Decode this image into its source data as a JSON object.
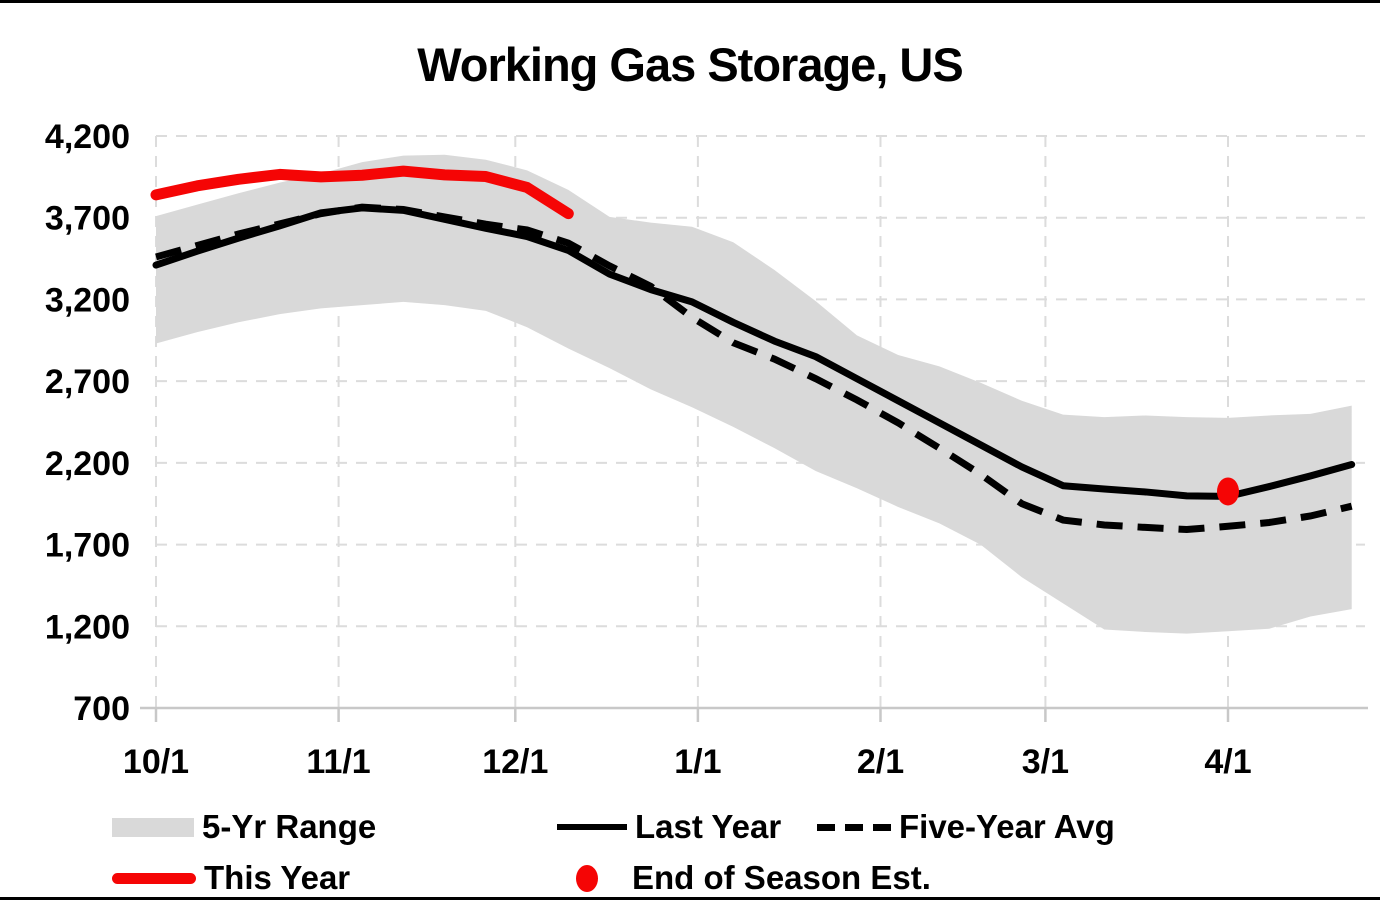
{
  "title": "Working Gas Storage, US",
  "legend": {
    "range_label": "5-Yr Range",
    "last_year_label": "Last Year",
    "five_year_avg_label": "Five-Year Avg",
    "this_year_label": "This Year",
    "end_of_season_label": "End of Season Est."
  },
  "colors": {
    "accent_red": "#F50505",
    "series_black": "#000000",
    "range_fill": "#D9D9D9",
    "gridline": "#DCDCDC",
    "axis_line": "#C8C8C8",
    "background": "#FFFFFF",
    "border": "#000000"
  },
  "chart_data": {
    "type": "line",
    "title": "Working Gas Storage, US",
    "xlabel": "",
    "ylabel": "",
    "ylim": [
      700,
      4200
    ],
    "grid": true,
    "legend_position": "bottom",
    "yticks": [
      {
        "value": 700,
        "label": "700"
      },
      {
        "value": 1200,
        "label": "1,200"
      },
      {
        "value": 1700,
        "label": "1,700"
      },
      {
        "value": 2200,
        "label": "2,200"
      },
      {
        "value": 2700,
        "label": "2,700"
      },
      {
        "value": 3200,
        "label": "3,200"
      },
      {
        "value": 3700,
        "label": "3,700"
      },
      {
        "value": 4200,
        "label": "4,200"
      }
    ],
    "xticks": [
      {
        "day": 0,
        "label": "10/1"
      },
      {
        "day": 31,
        "label": "11/1"
      },
      {
        "day": 61,
        "label": "12/1"
      },
      {
        "day": 92,
        "label": "1/1"
      },
      {
        "day": 123,
        "label": "2/1"
      },
      {
        "day": 151,
        "label": "3/1"
      },
      {
        "day": 182,
        "label": "4/1"
      }
    ],
    "dates": [
      "10/1",
      "10/8",
      "10/15",
      "10/22",
      "10/29",
      "11/5",
      "11/12",
      "11/19",
      "11/26",
      "12/3",
      "12/10",
      "12/17",
      "12/24",
      "12/31",
      "1/7",
      "1/14",
      "1/21",
      "1/28",
      "2/4",
      "2/11",
      "2/18",
      "2/25",
      "3/4",
      "3/11",
      "3/18",
      "3/25",
      "4/1",
      "4/8",
      "4/15",
      "4/22"
    ],
    "x_days": [
      0,
      7,
      14,
      21,
      28,
      35,
      42,
      49,
      56,
      63,
      70,
      77,
      84,
      91,
      98,
      105,
      112,
      119,
      126,
      133,
      140,
      147,
      154,
      161,
      168,
      175,
      182,
      189,
      196,
      203
    ],
    "series": [
      {
        "name": "5-Yr Range Top",
        "role": "range_top",
        "values": [
          3710,
          3780,
          3850,
          3915,
          3970,
          4040,
          4080,
          4085,
          4055,
          3990,
          3870,
          3705,
          3670,
          3645,
          3550,
          3380,
          3190,
          2980,
          2860,
          2790,
          2690,
          2580,
          2495,
          2480,
          2490,
          2480,
          2475,
          2490,
          2500,
          2550
        ]
      },
      {
        "name": "5-Yr Range Bottom",
        "role": "range_bottom",
        "values": [
          2930,
          3000,
          3060,
          3110,
          3145,
          3165,
          3185,
          3165,
          3130,
          3030,
          2900,
          2780,
          2650,
          2540,
          2420,
          2290,
          2150,
          2045,
          1930,
          1830,
          1700,
          1500,
          1340,
          1180,
          1165,
          1155,
          1170,
          1185,
          1260,
          1305
        ]
      },
      {
        "name": "Last Year",
        "role": "last_year",
        "values": [
          3410,
          3495,
          3575,
          3650,
          3730,
          3760,
          3745,
          3690,
          3635,
          3585,
          3500,
          3355,
          3260,
          3185,
          3060,
          2945,
          2850,
          2715,
          2580,
          2445,
          2310,
          2175,
          2060,
          2040,
          2022,
          1998,
          1995,
          2055,
          2120,
          2190
        ]
      },
      {
        "name": "Five-Year Avg",
        "role": "five_year_avg",
        "values": [
          3460,
          3530,
          3600,
          3662,
          3725,
          3765,
          3750,
          3705,
          3660,
          3625,
          3545,
          3405,
          3280,
          3090,
          2935,
          2835,
          2715,
          2585,
          2445,
          2290,
          2130,
          1950,
          1850,
          1820,
          1805,
          1792,
          1812,
          1835,
          1875,
          1935
        ]
      },
      {
        "name": "This Year",
        "role": "this_year",
        "values": [
          3840,
          3895,
          3935,
          3965,
          3950,
          3960,
          3985,
          3962,
          3952,
          3885,
          3725
        ]
      }
    ],
    "end_of_season_est": {
      "date": "4/1",
      "day": 182,
      "value": 2025
    }
  }
}
